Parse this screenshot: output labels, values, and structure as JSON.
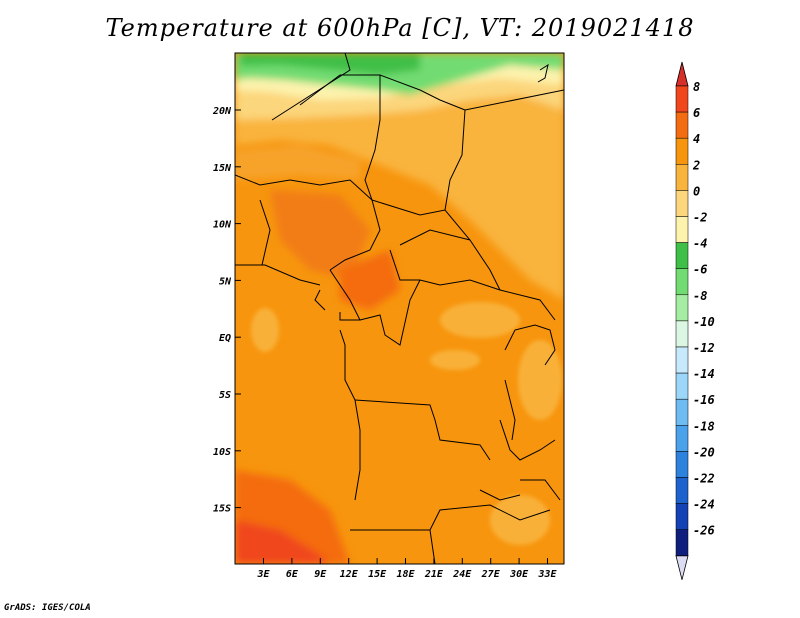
{
  "title": "Temperature at 600hPa [C], VT: 2019021418",
  "credit": "GrADS: IGES/COLA",
  "map": {
    "lat_labels": [
      "20N",
      "15N",
      "10N",
      "5N",
      "EQ",
      "5S",
      "10S",
      "15S"
    ],
    "lon_labels": [
      "3E",
      "6E",
      "9E",
      "12E",
      "15E",
      "18E",
      "21E",
      "24E",
      "27E",
      "30E",
      "33E"
    ]
  },
  "colorbar": {
    "labels": [
      "8",
      "6",
      "4",
      "2",
      "0",
      "-2",
      "-4",
      "-6",
      "-8",
      "-10",
      "-12",
      "-14",
      "-16",
      "-18",
      "-20",
      "-22",
      "-24",
      "-26"
    ],
    "colors": [
      "#d7302a",
      "#f0471c",
      "#f46c11",
      "#f7950e",
      "#f9b43d",
      "#fcd67c",
      "#fdf3ad",
      "#3fbf47",
      "#72dc72",
      "#a6eda4",
      "#dbf6e2",
      "#c7e9fc",
      "#9cd6f8",
      "#6fbcf2",
      "#4ba1ea",
      "#2d82de",
      "#1d62cd",
      "#1441b3",
      "#0f1e7c",
      "#dcdcf3"
    ]
  }
}
